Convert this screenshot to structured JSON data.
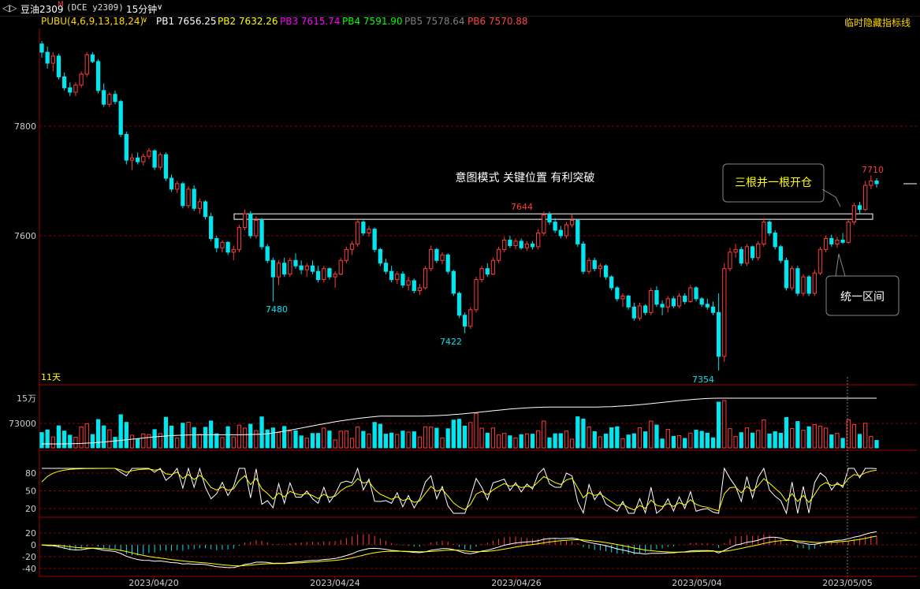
{
  "toolbar": {
    "nav_icon": "double-arrow-icon",
    "symbol": "豆油2309",
    "symbol_mark": "M",
    "contract": "(DCE y2309)",
    "period": "15分钟",
    "period_icon": "chevron-down-icon"
  },
  "indicator_bar": {
    "name": "PUBU(4,6,9,13,18,24)",
    "items": [
      {
        "label": "PB1",
        "value": "7656.25",
        "color": "#ffffff"
      },
      {
        "label": "PB2",
        "value": "7632.26",
        "color": "#ffff00"
      },
      {
        "label": "PB3",
        "value": "7615.74",
        "color": "#ff00ff"
      },
      {
        "label": "PB4",
        "value": "7591.90",
        "color": "#00ff00"
      },
      {
        "label": "PB5",
        "value": "7578.64",
        "color": "#808080"
      },
      {
        "label": "PB6",
        "value": "7570.88",
        "color": "#ff4444"
      }
    ],
    "hide_button": "临时隐藏指标线"
  },
  "colors": {
    "up": "#ff3b3b",
    "down": "#00e5ee",
    "grid": "#8b0000",
    "axis_text": "#cccccc",
    "annotation": "#ffff00"
  },
  "chart_data": [
    {
      "type": "candlestick",
      "title": "",
      "y_ticks": [
        7800,
        7600
      ],
      "ylim": [
        7330,
        7980
      ],
      "x_ticks": [
        "2023/04/20",
        "2023/04/24",
        "2023/04/26",
        "2023/05/04",
        "2023/05/05"
      ],
      "corner_label": "11天",
      "candles": [
        {
          "o": 7950,
          "h": 7955,
          "l": 7925,
          "c": 7935
        },
        {
          "o": 7935,
          "h": 7945,
          "l": 7905,
          "c": 7915
        },
        {
          "o": 7915,
          "h": 7935,
          "l": 7900,
          "c": 7928
        },
        {
          "o": 7928,
          "h": 7932,
          "l": 7885,
          "c": 7890
        },
        {
          "o": 7890,
          "h": 7898,
          "l": 7865,
          "c": 7870
        },
        {
          "o": 7870,
          "h": 7880,
          "l": 7855,
          "c": 7862
        },
        {
          "o": 7862,
          "h": 7880,
          "l": 7855,
          "c": 7875
        },
        {
          "o": 7875,
          "h": 7900,
          "l": 7870,
          "c": 7895
        },
        {
          "o": 7895,
          "h": 7935,
          "l": 7890,
          "c": 7930
        },
        {
          "o": 7930,
          "h": 7935,
          "l": 7915,
          "c": 7918
        },
        {
          "o": 7918,
          "h": 7922,
          "l": 7860,
          "c": 7865
        },
        {
          "o": 7865,
          "h": 7878,
          "l": 7835,
          "c": 7840
        },
        {
          "o": 7840,
          "h": 7862,
          "l": 7835,
          "c": 7858
        },
        {
          "o": 7858,
          "h": 7865,
          "l": 7840,
          "c": 7845
        },
        {
          "o": 7845,
          "h": 7848,
          "l": 7780,
          "c": 7785
        },
        {
          "o": 7785,
          "h": 7790,
          "l": 7730,
          "c": 7738
        },
        {
          "o": 7738,
          "h": 7750,
          "l": 7720,
          "c": 7742
        },
        {
          "o": 7742,
          "h": 7752,
          "l": 7730,
          "c": 7735
        },
        {
          "o": 7735,
          "h": 7750,
          "l": 7728,
          "c": 7745
        },
        {
          "o": 7745,
          "h": 7760,
          "l": 7740,
          "c": 7755
        },
        {
          "o": 7755,
          "h": 7758,
          "l": 7720,
          "c": 7725
        },
        {
          "o": 7725,
          "h": 7752,
          "l": 7720,
          "c": 7748
        },
        {
          "o": 7748,
          "h": 7752,
          "l": 7700,
          "c": 7705
        },
        {
          "o": 7705,
          "h": 7712,
          "l": 7680,
          "c": 7685
        },
        {
          "o": 7685,
          "h": 7700,
          "l": 7678,
          "c": 7695
        },
        {
          "o": 7695,
          "h": 7698,
          "l": 7650,
          "c": 7655
        },
        {
          "o": 7655,
          "h": 7690,
          "l": 7650,
          "c": 7685
        },
        {
          "o": 7685,
          "h": 7692,
          "l": 7645,
          "c": 7650
        },
        {
          "o": 7650,
          "h": 7668,
          "l": 7640,
          "c": 7662
        },
        {
          "o": 7662,
          "h": 7665,
          "l": 7630,
          "c": 7635
        },
        {
          "o": 7635,
          "h": 7642,
          "l": 7590,
          "c": 7595
        },
        {
          "o": 7595,
          "h": 7600,
          "l": 7570,
          "c": 7578
        },
        {
          "o": 7578,
          "h": 7592,
          "l": 7570,
          "c": 7588
        },
        {
          "o": 7588,
          "h": 7590,
          "l": 7565,
          "c": 7570
        },
        {
          "o": 7570,
          "h": 7582,
          "l": 7555,
          "c": 7575
        },
        {
          "o": 7575,
          "h": 7620,
          "l": 7570,
          "c": 7615
        },
        {
          "o": 7615,
          "h": 7648,
          "l": 7610,
          "c": 7640
        },
        {
          "o": 7640,
          "h": 7645,
          "l": 7595,
          "c": 7600
        },
        {
          "o": 7600,
          "h": 7635,
          "l": 7595,
          "c": 7628
        },
        {
          "o": 7628,
          "h": 7632,
          "l": 7575,
          "c": 7580
        },
        {
          "o": 7580,
          "h": 7585,
          "l": 7550,
          "c": 7555
        },
        {
          "o": 7555,
          "h": 7560,
          "l": 7480,
          "c": 7525
        },
        {
          "o": 7525,
          "h": 7555,
          "l": 7510,
          "c": 7550
        },
        {
          "o": 7550,
          "h": 7560,
          "l": 7525,
          "c": 7530
        },
        {
          "o": 7530,
          "h": 7560,
          "l": 7525,
          "c": 7555
        },
        {
          "o": 7555,
          "h": 7568,
          "l": 7540,
          "c": 7545
        },
        {
          "o": 7545,
          "h": 7555,
          "l": 7530,
          "c": 7538
        },
        {
          "o": 7538,
          "h": 7550,
          "l": 7525,
          "c": 7545
        },
        {
          "o": 7545,
          "h": 7555,
          "l": 7530,
          "c": 7535
        },
        {
          "o": 7535,
          "h": 7545,
          "l": 7515,
          "c": 7520
        },
        {
          "o": 7520,
          "h": 7545,
          "l": 7515,
          "c": 7540
        },
        {
          "o": 7540,
          "h": 7542,
          "l": 7520,
          "c": 7525
        },
        {
          "o": 7525,
          "h": 7535,
          "l": 7505,
          "c": 7530
        },
        {
          "o": 7530,
          "h": 7560,
          "l": 7528,
          "c": 7555
        },
        {
          "o": 7555,
          "h": 7580,
          "l": 7550,
          "c": 7575
        },
        {
          "o": 7575,
          "h": 7590,
          "l": 7565,
          "c": 7585
        },
        {
          "o": 7585,
          "h": 7630,
          "l": 7580,
          "c": 7625
        },
        {
          "o": 7625,
          "h": 7628,
          "l": 7600,
          "c": 7605
        },
        {
          "o": 7605,
          "h": 7618,
          "l": 7598,
          "c": 7612
        },
        {
          "o": 7612,
          "h": 7615,
          "l": 7570,
          "c": 7575
        },
        {
          "o": 7575,
          "h": 7578,
          "l": 7545,
          "c": 7550
        },
        {
          "o": 7550,
          "h": 7558,
          "l": 7530,
          "c": 7535
        },
        {
          "o": 7535,
          "h": 7545,
          "l": 7515,
          "c": 7520
        },
        {
          "o": 7520,
          "h": 7535,
          "l": 7512,
          "c": 7530
        },
        {
          "o": 7530,
          "h": 7535,
          "l": 7505,
          "c": 7510
        },
        {
          "o": 7510,
          "h": 7525,
          "l": 7500,
          "c": 7518
        },
        {
          "o": 7518,
          "h": 7522,
          "l": 7495,
          "c": 7500
        },
        {
          "o": 7500,
          "h": 7512,
          "l": 7492,
          "c": 7505
        },
        {
          "o": 7505,
          "h": 7545,
          "l": 7502,
          "c": 7540
        },
        {
          "o": 7540,
          "h": 7582,
          "l": 7535,
          "c": 7575
        },
        {
          "o": 7575,
          "h": 7578,
          "l": 7550,
          "c": 7555
        },
        {
          "o": 7555,
          "h": 7570,
          "l": 7548,
          "c": 7565
        },
        {
          "o": 7565,
          "h": 7568,
          "l": 7530,
          "c": 7535
        },
        {
          "o": 7535,
          "h": 7538,
          "l": 7490,
          "c": 7495
        },
        {
          "o": 7495,
          "h": 7498,
          "l": 7450,
          "c": 7455
        },
        {
          "o": 7455,
          "h": 7460,
          "l": 7422,
          "c": 7435
        },
        {
          "o": 7435,
          "h": 7470,
          "l": 7430,
          "c": 7465
        },
        {
          "o": 7465,
          "h": 7525,
          "l": 7460,
          "c": 7520
        },
        {
          "o": 7520,
          "h": 7545,
          "l": 7515,
          "c": 7540
        },
        {
          "o": 7540,
          "h": 7550,
          "l": 7525,
          "c": 7530
        },
        {
          "o": 7530,
          "h": 7560,
          "l": 7528,
          "c": 7555
        },
        {
          "o": 7555,
          "h": 7580,
          "l": 7550,
          "c": 7575
        },
        {
          "o": 7575,
          "h": 7598,
          "l": 7570,
          "c": 7592
        },
        {
          "o": 7592,
          "h": 7600,
          "l": 7578,
          "c": 7582
        },
        {
          "o": 7582,
          "h": 7595,
          "l": 7575,
          "c": 7590
        },
        {
          "o": 7590,
          "h": 7595,
          "l": 7575,
          "c": 7578
        },
        {
          "o": 7578,
          "h": 7590,
          "l": 7572,
          "c": 7585
        },
        {
          "o": 7585,
          "h": 7590,
          "l": 7575,
          "c": 7580
        },
        {
          "o": 7580,
          "h": 7612,
          "l": 7575,
          "c": 7605
        },
        {
          "o": 7605,
          "h": 7644,
          "l": 7600,
          "c": 7638
        },
        {
          "o": 7638,
          "h": 7644,
          "l": 7620,
          "c": 7625
        },
        {
          "o": 7625,
          "h": 7632,
          "l": 7605,
          "c": 7610
        },
        {
          "o": 7610,
          "h": 7618,
          "l": 7595,
          "c": 7600
        },
        {
          "o": 7600,
          "h": 7625,
          "l": 7595,
          "c": 7620
        },
        {
          "o": 7620,
          "h": 7640,
          "l": 7615,
          "c": 7628
        },
        {
          "o": 7628,
          "h": 7630,
          "l": 7580,
          "c": 7585
        },
        {
          "o": 7585,
          "h": 7590,
          "l": 7530,
          "c": 7535
        },
        {
          "o": 7535,
          "h": 7560,
          "l": 7530,
          "c": 7555
        },
        {
          "o": 7555,
          "h": 7560,
          "l": 7535,
          "c": 7540
        },
        {
          "o": 7540,
          "h": 7550,
          "l": 7525,
          "c": 7545
        },
        {
          "o": 7545,
          "h": 7548,
          "l": 7520,
          "c": 7525
        },
        {
          "o": 7525,
          "h": 7528,
          "l": 7500,
          "c": 7505
        },
        {
          "o": 7505,
          "h": 7508,
          "l": 7480,
          "c": 7485
        },
        {
          "o": 7485,
          "h": 7495,
          "l": 7470,
          "c": 7490
        },
        {
          "o": 7490,
          "h": 7492,
          "l": 7465,
          "c": 7470
        },
        {
          "o": 7470,
          "h": 7478,
          "l": 7445,
          "c": 7450
        },
        {
          "o": 7450,
          "h": 7478,
          "l": 7445,
          "c": 7472
        },
        {
          "o": 7472,
          "h": 7475,
          "l": 7455,
          "c": 7460
        },
        {
          "o": 7460,
          "h": 7505,
          "l": 7455,
          "c": 7500
        },
        {
          "o": 7500,
          "h": 7508,
          "l": 7470,
          "c": 7475
        },
        {
          "o": 7475,
          "h": 7482,
          "l": 7455,
          "c": 7470
        },
        {
          "o": 7470,
          "h": 7490,
          "l": 7460,
          "c": 7485
        },
        {
          "o": 7485,
          "h": 7490,
          "l": 7468,
          "c": 7472
        },
        {
          "o": 7472,
          "h": 7495,
          "l": 7468,
          "c": 7490
        },
        {
          "o": 7490,
          "h": 7495,
          "l": 7475,
          "c": 7480
        },
        {
          "o": 7480,
          "h": 7510,
          "l": 7478,
          "c": 7505
        },
        {
          "o": 7505,
          "h": 7508,
          "l": 7480,
          "c": 7485
        },
        {
          "o": 7485,
          "h": 7488,
          "l": 7470,
          "c": 7475
        },
        {
          "o": 7475,
          "h": 7485,
          "l": 7465,
          "c": 7470
        },
        {
          "o": 7470,
          "h": 7480,
          "l": 7455,
          "c": 7460
        },
        {
          "o": 7460,
          "h": 7495,
          "l": 7354,
          "c": 7380
        },
        {
          "o": 7380,
          "h": 7550,
          "l": 7370,
          "c": 7540
        },
        {
          "o": 7540,
          "h": 7578,
          "l": 7535,
          "c": 7570
        },
        {
          "o": 7570,
          "h": 7585,
          "l": 7560,
          "c": 7575
        },
        {
          "o": 7575,
          "h": 7580,
          "l": 7545,
          "c": 7550
        },
        {
          "o": 7550,
          "h": 7585,
          "l": 7545,
          "c": 7580
        },
        {
          "o": 7580,
          "h": 7582,
          "l": 7555,
          "c": 7560
        },
        {
          "o": 7560,
          "h": 7590,
          "l": 7555,
          "c": 7585
        },
        {
          "o": 7585,
          "h": 7632,
          "l": 7580,
          "c": 7625
        },
        {
          "o": 7625,
          "h": 7628,
          "l": 7600,
          "c": 7605
        },
        {
          "o": 7605,
          "h": 7610,
          "l": 7575,
          "c": 7580
        },
        {
          "o": 7580,
          "h": 7583,
          "l": 7550,
          "c": 7555
        },
        {
          "o": 7555,
          "h": 7560,
          "l": 7500,
          "c": 7505
        },
        {
          "o": 7505,
          "h": 7545,
          "l": 7500,
          "c": 7540
        },
        {
          "o": 7540,
          "h": 7545,
          "l": 7490,
          "c": 7495
        },
        {
          "o": 7495,
          "h": 7530,
          "l": 7490,
          "c": 7525
        },
        {
          "o": 7525,
          "h": 7528,
          "l": 7490,
          "c": 7495
        },
        {
          "o": 7495,
          "h": 7538,
          "l": 7490,
          "c": 7532
        },
        {
          "o": 7532,
          "h": 7580,
          "l": 7528,
          "c": 7575
        },
        {
          "o": 7575,
          "h": 7600,
          "l": 7570,
          "c": 7595
        },
        {
          "o": 7595,
          "h": 7602,
          "l": 7580,
          "c": 7585
        },
        {
          "o": 7585,
          "h": 7598,
          "l": 7578,
          "c": 7592
        },
        {
          "o": 7592,
          "h": 7605,
          "l": 7585,
          "c": 7588
        },
        {
          "o": 7588,
          "h": 7630,
          "l": 7585,
          "c": 7625
        },
        {
          "o": 7625,
          "h": 7660,
          "l": 7620,
          "c": 7655
        },
        {
          "o": 7655,
          "h": 7662,
          "l": 7640,
          "c": 7648
        },
        {
          "o": 7648,
          "h": 7700,
          "l": 7645,
          "c": 7692
        },
        {
          "o": 7692,
          "h": 7710,
          "l": 7685,
          "c": 7700
        },
        {
          "o": 7700,
          "h": 7705,
          "l": 7688,
          "c": 7695
        }
      ],
      "annotations": [
        {
          "text": "意图模式 关键位置 有利突破",
          "color": "#ffffff"
        },
        {
          "text": "7644",
          "color": "#ff3b3b"
        },
        {
          "text": "7710",
          "color": "#ff3b3b"
        },
        {
          "text": "7480",
          "color": "#00e5ee"
        },
        {
          "text": "7422",
          "color": "#00e5ee"
        },
        {
          "text": "7354",
          "color": "#00e5ee"
        }
      ],
      "callouts": [
        {
          "text": "三根并一根开仓",
          "color": "#ffff00"
        },
        {
          "text": "统一区间",
          "color": "#ffffff"
        }
      ],
      "key_zone": [
        7630,
        7640
      ]
    },
    {
      "type": "bar",
      "title": "",
      "y_ticks_text": [
        "15万",
        "73000"
      ]
    },
    {
      "type": "line",
      "title": "",
      "y_ticks": [
        80,
        50,
        20
      ]
    },
    {
      "type": "bar",
      "title": "",
      "y_ticks": [
        20,
        0,
        -20,
        -40
      ]
    }
  ]
}
